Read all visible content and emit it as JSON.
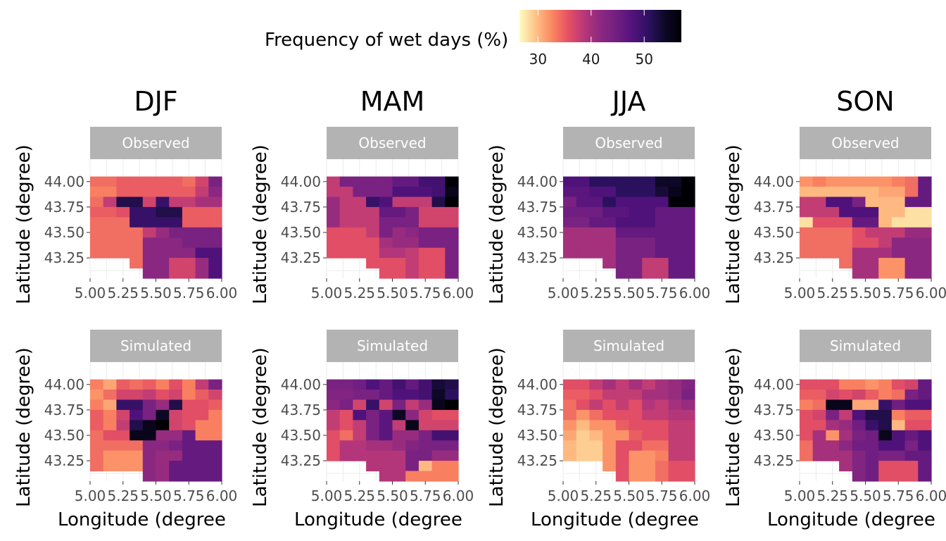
{
  "legend": {
    "title": "Frequency of wet days (%)",
    "ticks": [
      "30",
      "40",
      "50"
    ],
    "tick_values": [
      30,
      40,
      50
    ],
    "range": [
      26.5,
      57
    ],
    "palette": "magma",
    "colors": [
      "#FCFDBF",
      "#FEC287",
      "#FB8761",
      "#E65164",
      "#B73779",
      "#8C2981",
      "#721F81",
      "#51127C",
      "#2C115F",
      "#0D0826",
      "#000004"
    ]
  },
  "axes": {
    "xlabel": "Longitude (degree",
    "ylabel": "Latitude (degree)",
    "xticks": [
      "5.00",
      "5.25",
      "5.50",
      "5.75",
      "6.00"
    ],
    "yticks": [
      "44.00",
      "43.75",
      "43.50",
      "43.25"
    ],
    "xlim": [
      5.0,
      6.0
    ],
    "ylim": [
      43.05,
      44.22
    ]
  },
  "seasons": [
    "DJF",
    "MAM",
    "JJA",
    "SON"
  ],
  "rows": [
    "Observed",
    "Simulated"
  ],
  "chart_data": {
    "type": "heatmap",
    "description_grid": "lon cells 5.00-6.00 step 0.1 (10 cols), lat cells 44.05 down to 43.15 step 0.1 (10 rows), values in % wet days; null = no data",
    "lon_centers": [
      5.05,
      5.15,
      5.25,
      5.35,
      5.45,
      5.55,
      5.65,
      5.75,
      5.85,
      5.95
    ],
    "lat_centers": [
      44.0,
      43.9,
      43.8,
      43.7,
      43.6,
      43.5,
      43.4,
      43.3,
      43.2,
      43.1
    ],
    "panels": {
      "DJF": {
        "Observed": [
          [
            34,
            34,
            35,
            35,
            35,
            35,
            35,
            34,
            37,
            44
          ],
          [
            33,
            33,
            35,
            35,
            35,
            35,
            35,
            35,
            38,
            42
          ],
          [
            34,
            38,
            52,
            52,
            37,
            50,
            38,
            38,
            40,
            40
          ],
          [
            35,
            35,
            36,
            50,
            50,
            52,
            52,
            35,
            35,
            35
          ],
          [
            34,
            34,
            34,
            50,
            50,
            50,
            50,
            35,
            35,
            35
          ],
          [
            34,
            34,
            34,
            34,
            38,
            41,
            44,
            44,
            44,
            44
          ],
          [
            34,
            34,
            34,
            34,
            42,
            42,
            42,
            44,
            44,
            44
          ],
          [
            34,
            34,
            34,
            34,
            42,
            42,
            42,
            42,
            48,
            48
          ],
          [
            null,
            null,
            null,
            34,
            42,
            42,
            37,
            37,
            41,
            48
          ],
          [
            null,
            null,
            null,
            null,
            42,
            42,
            37,
            37,
            41,
            48
          ]
        ],
        "Simulated": [
          [
            33,
            31,
            35,
            34,
            35,
            33,
            36,
            33,
            38,
            44
          ],
          [
            32,
            34,
            37,
            37,
            38,
            36,
            37,
            33,
            35,
            37
          ],
          [
            33,
            31,
            50,
            50,
            44,
            41,
            52,
            36,
            36,
            35
          ],
          [
            35,
            33,
            37,
            48,
            44,
            54,
            37,
            36,
            36,
            33
          ],
          [
            35,
            33,
            38,
            52,
            55,
            57,
            37,
            36,
            33,
            33
          ],
          [
            34,
            36,
            36,
            55,
            55,
            41,
            41,
            46,
            33,
            33
          ],
          [
            34,
            34,
            34,
            34,
            42,
            42,
            44,
            46,
            46,
            46
          ],
          [
            34,
            32,
            32,
            32,
            42,
            41,
            41,
            46,
            46,
            46
          ],
          [
            34,
            32,
            32,
            32,
            42,
            41,
            46,
            46,
            46,
            46
          ],
          [
            null,
            null,
            null,
            null,
            42,
            41,
            46,
            46,
            46,
            46
          ]
        ]
      },
      "MAM": {
        "Observed": [
          [
            38,
            44,
            44,
            44,
            44,
            46,
            46,
            49,
            49,
            57
          ],
          [
            38,
            38,
            44,
            44,
            44,
            48,
            48,
            48,
            49,
            55
          ],
          [
            41,
            38,
            38,
            50,
            48,
            38,
            38,
            38,
            52,
            57
          ],
          [
            41,
            38,
            38,
            38,
            46,
            46,
            44,
            37,
            37,
            37
          ],
          [
            41,
            38,
            38,
            38,
            44,
            44,
            44,
            37,
            37,
            37
          ],
          [
            36,
            36,
            36,
            38,
            44,
            41,
            42,
            44,
            44,
            44
          ],
          [
            36,
            36,
            36,
            36,
            40,
            41,
            41,
            44,
            44,
            44
          ],
          [
            36,
            36,
            36,
            36,
            39,
            39,
            38,
            36,
            36,
            44
          ],
          [
            null,
            null,
            null,
            36,
            36,
            36,
            38,
            36,
            36,
            44
          ],
          [
            null,
            null,
            null,
            null,
            36,
            36,
            38,
            36,
            36,
            44
          ]
        ],
        "Simulated": [
          [
            44,
            44,
            45,
            48,
            46,
            49,
            46,
            49,
            53,
            52
          ],
          [
            43,
            43,
            44,
            44,
            46,
            48,
            48,
            49,
            54,
            51
          ],
          [
            42,
            44,
            37,
            50,
            37,
            44,
            38,
            41,
            55,
            57
          ],
          [
            38,
            36,
            48,
            44,
            47,
            54,
            42,
            37,
            36,
            36
          ],
          [
            38,
            36,
            38,
            44,
            47,
            38,
            55,
            37,
            37,
            37
          ],
          [
            36,
            34,
            38,
            44,
            47,
            41,
            41,
            44,
            49,
            49
          ],
          [
            36,
            39,
            39,
            40,
            40,
            41,
            43,
            44,
            44,
            44
          ],
          [
            36,
            39,
            39,
            39,
            39,
            39,
            44,
            44,
            41,
            41
          ],
          [
            null,
            null,
            null,
            39,
            39,
            39,
            44,
            30,
            33,
            33
          ],
          [
            null,
            null,
            null,
            null,
            39,
            39,
            33,
            33,
            33,
            33
          ]
        ]
      },
      "JJA": {
        "Observed": [
          [
            48,
            48,
            51,
            51,
            51,
            51,
            51,
            54,
            54,
            57
          ],
          [
            47,
            47,
            48,
            48,
            51,
            51,
            51,
            53,
            55,
            57
          ],
          [
            44,
            47,
            47,
            51,
            48,
            48,
            48,
            48,
            57,
            57
          ],
          [
            45,
            45,
            45,
            47,
            47,
            48,
            48,
            46,
            46,
            46
          ],
          [
            44,
            44,
            46,
            46,
            48,
            48,
            48,
            46,
            46,
            46
          ],
          [
            40,
            40,
            40,
            40,
            46,
            46,
            46,
            46,
            46,
            46
          ],
          [
            40,
            40,
            40,
            40,
            44,
            44,
            44,
            46,
            46,
            46
          ],
          [
            40,
            40,
            40,
            40,
            44,
            44,
            44,
            46,
            46,
            46
          ],
          [
            null,
            null,
            null,
            40,
            44,
            44,
            38,
            38,
            46,
            46
          ],
          [
            null,
            null,
            null,
            null,
            44,
            44,
            38,
            38,
            46,
            46
          ]
        ],
        "Simulated": [
          [
            36,
            36,
            38,
            40,
            38,
            40,
            38,
            40,
            41,
            43
          ],
          [
            35,
            35,
            36,
            38,
            38,
            38,
            40,
            40,
            41,
            44
          ],
          [
            34,
            36,
            38,
            36,
            38,
            36,
            39,
            38,
            40,
            41
          ],
          [
            34,
            32,
            34,
            36,
            36,
            36,
            38,
            38,
            39,
            39
          ],
          [
            32,
            30,
            32,
            32,
            35,
            36,
            36,
            36,
            38,
            38
          ],
          [
            31,
            29,
            30,
            32,
            32,
            35,
            36,
            36,
            38,
            38
          ],
          [
            30,
            29,
            29,
            32,
            36,
            36,
            34,
            34,
            38,
            38
          ],
          [
            30,
            29,
            29,
            32,
            36,
            32,
            32,
            33,
            38,
            38
          ],
          [
            null,
            null,
            null,
            32,
            36,
            32,
            32,
            34,
            36,
            36
          ],
          [
            null,
            null,
            null,
            null,
            36,
            32,
            32,
            34,
            36,
            36
          ]
        ]
      },
      "SON": {
        "Observed": [
          [
            32,
            33,
            32,
            32,
            32,
            32,
            32,
            33,
            34,
            46
          ],
          [
            30,
            30,
            30,
            30,
            30,
            30,
            31,
            31,
            34,
            46
          ],
          [
            38,
            38,
            48,
            48,
            44,
            30,
            30,
            30,
            46,
            46
          ],
          [
            38,
            38,
            38,
            48,
            48,
            48,
            30,
            30,
            28,
            28
          ],
          [
            28,
            36,
            36,
            36,
            46,
            46,
            30,
            28,
            28,
            28
          ],
          [
            34,
            34,
            34,
            34,
            36,
            38,
            38,
            38,
            41,
            41
          ],
          [
            34,
            34,
            34,
            34,
            36,
            36,
            38,
            42,
            42,
            42
          ],
          [
            34,
            34,
            34,
            34,
            40,
            40,
            40,
            42,
            42,
            42
          ],
          [
            null,
            null,
            null,
            34,
            40,
            40,
            32,
            32,
            42,
            42
          ],
          [
            null,
            null,
            null,
            null,
            40,
            40,
            32,
            32,
            42,
            42
          ]
        ],
        "Simulated": [
          [
            36,
            36,
            36,
            33,
            33,
            32,
            33,
            36,
            37,
            46
          ],
          [
            35,
            35,
            37,
            36,
            37,
            35,
            33,
            34,
            44,
            46
          ],
          [
            33,
            34,
            55,
            55,
            31,
            31,
            50,
            45,
            48,
            48
          ],
          [
            36,
            37,
            44,
            38,
            48,
            52,
            52,
            33,
            35,
            35
          ],
          [
            36,
            36,
            40,
            41,
            45,
            50,
            52,
            30,
            36,
            36
          ],
          [
            36,
            40,
            32,
            40,
            44,
            45,
            55,
            48,
            46,
            48
          ],
          [
            34,
            40,
            40,
            42,
            45,
            45,
            48,
            48,
            44,
            48
          ],
          [
            34,
            40,
            40,
            40,
            43,
            45,
            44,
            44,
            46,
            46
          ],
          [
            null,
            null,
            null,
            40,
            43,
            45,
            36,
            36,
            36,
            46
          ],
          [
            null,
            null,
            null,
            null,
            43,
            45,
            36,
            36,
            36,
            46
          ]
        ]
      }
    }
  }
}
